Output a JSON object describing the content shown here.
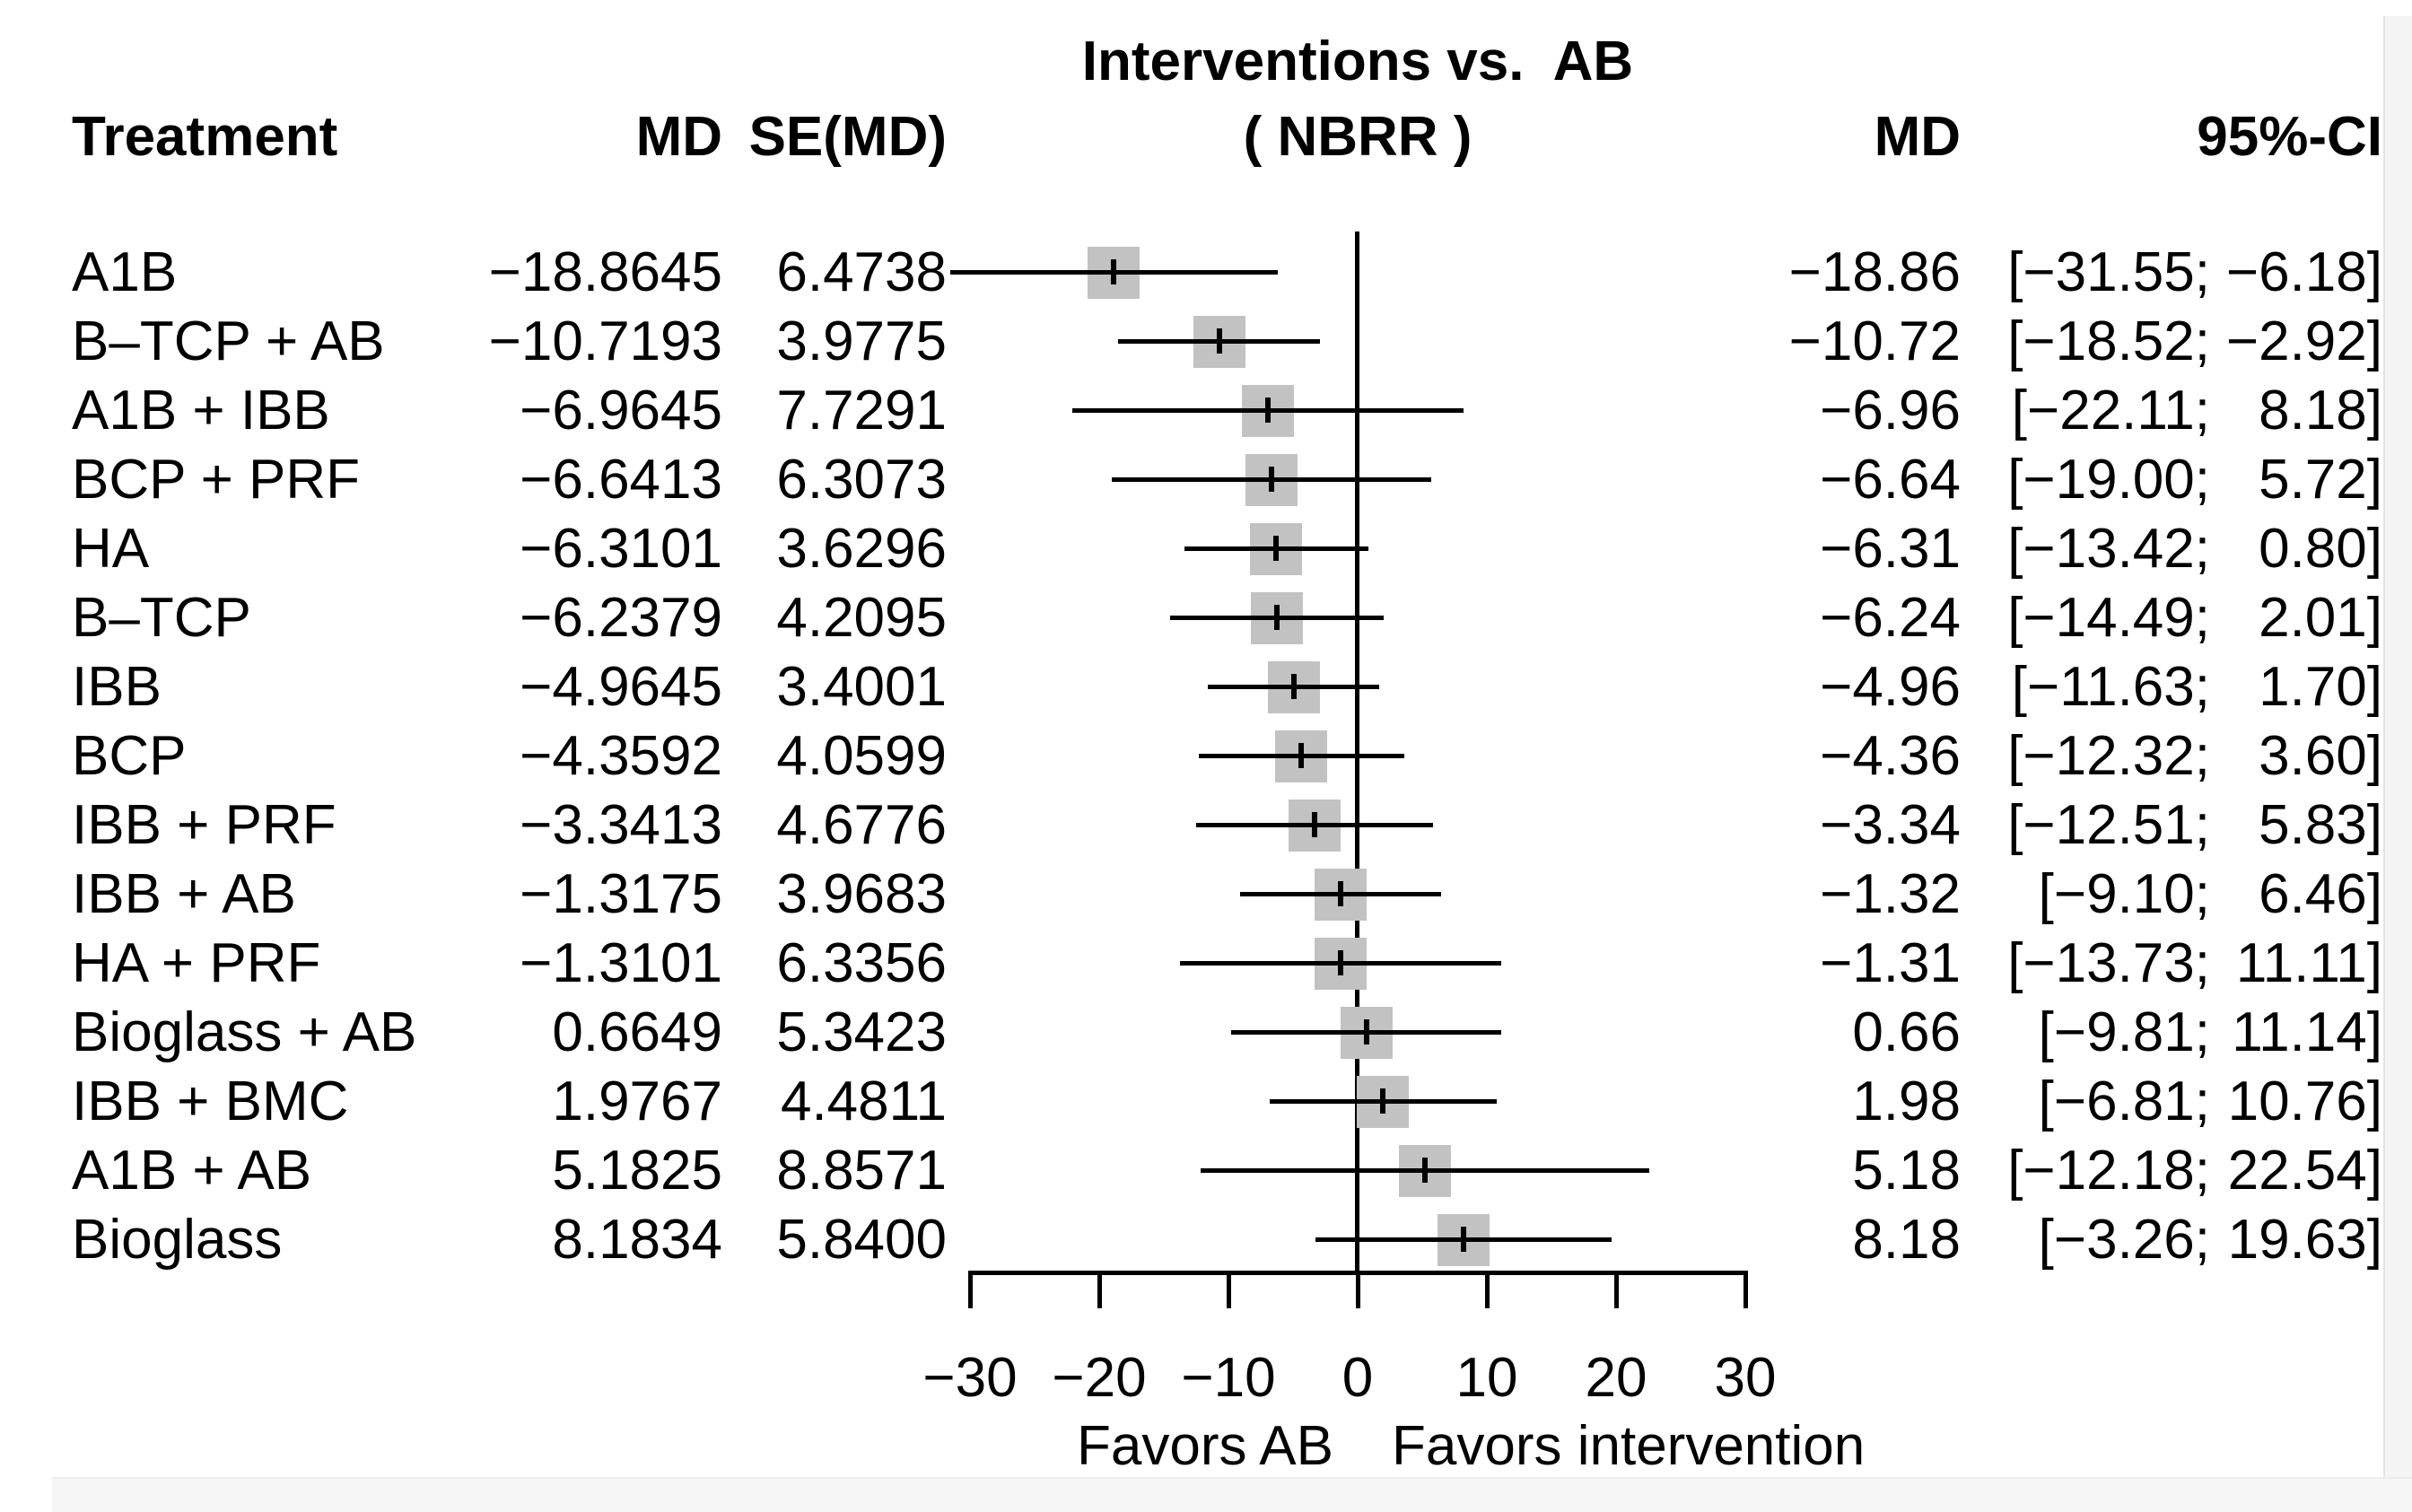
{
  "figure": {
    "title_line1": "Interventions vs.  AB",
    "title_line2": "( NBRR )",
    "columns": {
      "treatment": "Treatment",
      "md_exact": "MD",
      "se": "SE(MD)",
      "md_summary": "MD",
      "ci": "95%-CI"
    },
    "footer": {
      "favors_left": "Favors AB",
      "favors_right": "Favors intervention"
    }
  },
  "chart_data": {
    "type": "forest",
    "title": "Interventions vs. AB ( NBRR )",
    "effect_measure": "MD",
    "comparator": "AB",
    "outcome": "NBRR",
    "x_axis": {
      "min": -30,
      "max": 30,
      "ticks": [
        -30,
        -20,
        -10,
        0,
        10,
        20,
        30
      ],
      "tick_labels": [
        "−30",
        "−20",
        "−10",
        "0",
        "10",
        "20",
        "30"
      ],
      "zero_line": 0
    },
    "colors": {
      "marker_fill": "#c2c2c2",
      "line": "#000000",
      "background": "#ffffff"
    },
    "rows": [
      {
        "treatment": "A1B",
        "md": -18.8645,
        "se": 6.4738,
        "md_label": "−18.8645",
        "se_label": "6.4738",
        "md_summary": "−18.86",
        "ci_low": -31.55,
        "ci_high": -6.18,
        "ci_low_label": "−31.55",
        "ci_high_label": "−6.18"
      },
      {
        "treatment": "B–TCP + AB",
        "md": -10.7193,
        "se": 3.9775,
        "md_label": "−10.7193",
        "se_label": "3.9775",
        "md_summary": "−10.72",
        "ci_low": -18.52,
        "ci_high": -2.92,
        "ci_low_label": "−18.52",
        "ci_high_label": "−2.92"
      },
      {
        "treatment": "A1B + IBB",
        "md": -6.9645,
        "se": 7.7291,
        "md_label": "−6.9645",
        "se_label": "7.7291",
        "md_summary": "−6.96",
        "ci_low": -22.11,
        "ci_high": 8.18,
        "ci_low_label": "−22.11",
        "ci_high_label": "8.18"
      },
      {
        "treatment": "BCP + PRF",
        "md": -6.6413,
        "se": 6.3073,
        "md_label": "−6.6413",
        "se_label": "6.3073",
        "md_summary": "−6.64",
        "ci_low": -19.0,
        "ci_high": 5.72,
        "ci_low_label": "−19.00",
        "ci_high_label": "5.72"
      },
      {
        "treatment": "HA",
        "md": -6.3101,
        "se": 3.6296,
        "md_label": "−6.3101",
        "se_label": "3.6296",
        "md_summary": "−6.31",
        "ci_low": -13.42,
        "ci_high": 0.8,
        "ci_low_label": "−13.42",
        "ci_high_label": "0.80"
      },
      {
        "treatment": "B–TCP",
        "md": -6.2379,
        "se": 4.2095,
        "md_label": "−6.2379",
        "se_label": "4.2095",
        "md_summary": "−6.24",
        "ci_low": -14.49,
        "ci_high": 2.01,
        "ci_low_label": "−14.49",
        "ci_high_label": "2.01"
      },
      {
        "treatment": "IBB",
        "md": -4.9645,
        "se": 3.4001,
        "md_label": "−4.9645",
        "se_label": "3.4001",
        "md_summary": "−4.96",
        "ci_low": -11.63,
        "ci_high": 1.7,
        "ci_low_label": "−11.63",
        "ci_high_label": "1.70"
      },
      {
        "treatment": "BCP",
        "md": -4.3592,
        "se": 4.0599,
        "md_label": "−4.3592",
        "se_label": "4.0599",
        "md_summary": "−4.36",
        "ci_low": -12.32,
        "ci_high": 3.6,
        "ci_low_label": "−12.32",
        "ci_high_label": "3.60"
      },
      {
        "treatment": "IBB + PRF",
        "md": -3.3413,
        "se": 4.6776,
        "md_label": "−3.3413",
        "se_label": "4.6776",
        "md_summary": "−3.34",
        "ci_low": -12.51,
        "ci_high": 5.83,
        "ci_low_label": "−12.51",
        "ci_high_label": "5.83"
      },
      {
        "treatment": "IBB + AB",
        "md": -1.3175,
        "se": 3.9683,
        "md_label": "−1.3175",
        "se_label": "3.9683",
        "md_summary": "−1.32",
        "ci_low": -9.1,
        "ci_high": 6.46,
        "ci_low_label": "−9.10",
        "ci_high_label": "6.46"
      },
      {
        "treatment": "HA + PRF",
        "md": -1.3101,
        "se": 6.3356,
        "md_label": "−1.3101",
        "se_label": "6.3356",
        "md_summary": "−1.31",
        "ci_low": -13.73,
        "ci_high": 11.11,
        "ci_low_label": "−13.73",
        "ci_high_label": "11.11"
      },
      {
        "treatment": "Bioglass + AB",
        "md": 0.6649,
        "se": 5.3423,
        "md_label": "0.6649",
        "se_label": "5.3423",
        "md_summary": "0.66",
        "ci_low": -9.81,
        "ci_high": 11.14,
        "ci_low_label": "−9.81",
        "ci_high_label": "11.14"
      },
      {
        "treatment": "IBB + BMC",
        "md": 1.9767,
        "se": 4.4811,
        "md_label": "1.9767",
        "se_label": "4.4811",
        "md_summary": "1.98",
        "ci_low": -6.81,
        "ci_high": 10.76,
        "ci_low_label": "−6.81",
        "ci_high_label": "10.76"
      },
      {
        "treatment": "A1B + AB",
        "md": 5.1825,
        "se": 8.8571,
        "md_label": "5.1825",
        "se_label": "8.8571",
        "md_summary": "5.18",
        "ci_low": -12.18,
        "ci_high": 22.54,
        "ci_low_label": "−12.18",
        "ci_high_label": "22.54"
      },
      {
        "treatment": "Bioglass",
        "md": 8.1834,
        "se": 5.84,
        "md_label": "8.1834",
        "se_label": "5.8400",
        "md_summary": "8.18",
        "ci_low": -3.26,
        "ci_high": 19.63,
        "ci_low_label": "−3.26",
        "ci_high_label": "19.63"
      }
    ]
  }
}
